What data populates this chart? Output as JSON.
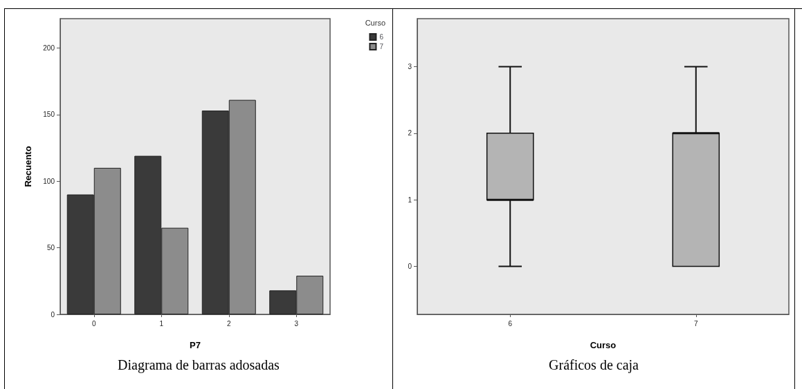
{
  "chart_data": [
    {
      "type": "bar",
      "title": "Diagrama de barras adosadas",
      "xlabel": "P7",
      "ylabel": "Recuento",
      "legend_title": "Curso",
      "legend": "top right",
      "categories": [
        "0",
        "1",
        "2",
        "3"
      ],
      "series": [
        {
          "name": "6",
          "color": "#3a3a3a",
          "values": [
            90,
            119,
            153,
            18
          ]
        },
        {
          "name": "7",
          "color": "#8c8c8c",
          "values": [
            110,
            65,
            161,
            29
          ]
        }
      ],
      "ylim": [
        0,
        222
      ],
      "yticks": [
        0,
        50,
        100,
        150,
        200
      ]
    },
    {
      "type": "box",
      "title": "Gráficos de caja",
      "xlabel": "Curso",
      "categories": [
        "6",
        "7"
      ],
      "series": [
        {
          "color": "#b4b4b4",
          "boxes": [
            {
              "low": 0,
              "q1": 1,
              "median": 1,
              "q3": 2,
              "high": 3
            },
            {
              "low": 0,
              "q1": 0,
              "median": 2,
              "q3": 2,
              "high": 3
            }
          ]
        }
      ],
      "ylim": [
        -0.72,
        3.72
      ],
      "yticks": [
        0,
        1,
        2,
        3
      ]
    }
  ]
}
